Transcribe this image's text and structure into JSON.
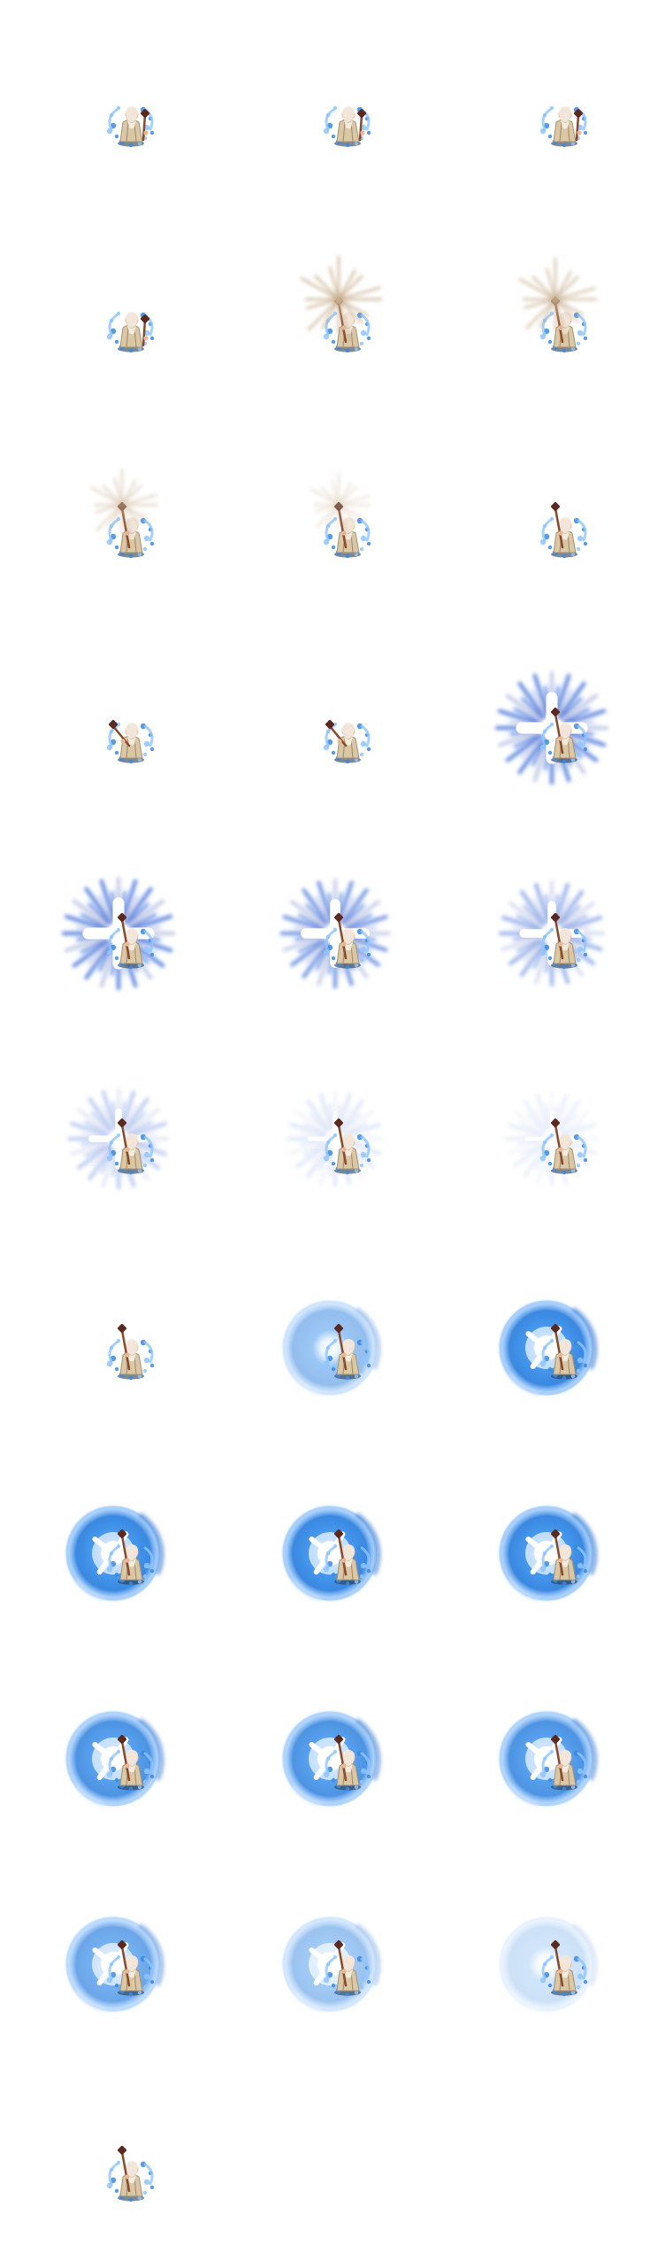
{
  "sprite_sheet": {
    "columns": 3,
    "rows": 11,
    "frame_count": 31,
    "palette": {
      "robe": "#d9c7a6",
      "robe_shadow": "#a89170",
      "skin": "#e8b89a",
      "hair": "#f2ebe0",
      "staff": "#8a4a2a",
      "staff_head": "#5a2a20",
      "aura": "#8fc4ff",
      "aura_dark": "#3a88e0",
      "orb_core": "#ffffff",
      "ray_tan": "#c9b090",
      "burst_blue": "#6a8fe0",
      "shadow": "#2a3a4a"
    },
    "frames": [
      {
        "staff": "low",
        "effect": "none"
      },
      {
        "staff": "low",
        "effect": "none"
      },
      {
        "staff": "low",
        "effect": "none"
      },
      {
        "staff": "low",
        "effect": "none"
      },
      {
        "staff": "raised",
        "effect": "rays",
        "level": 1.0
      },
      {
        "staff": "raised",
        "effect": "rays",
        "level": 0.9
      },
      {
        "staff": "raised",
        "effect": "rays",
        "level": 0.6
      },
      {
        "staff": "raised",
        "effect": "rays",
        "level": 0.4
      },
      {
        "staff": "raised",
        "effect": "none"
      },
      {
        "staff": "side",
        "effect": "none"
      },
      {
        "staff": "side",
        "effect": "none"
      },
      {
        "staff": "raised",
        "effect": "burst",
        "level": 1.0
      },
      {
        "staff": "raised",
        "effect": "burst",
        "level": 1.0
      },
      {
        "staff": "raised",
        "effect": "burst",
        "level": 0.85
      },
      {
        "staff": "raised",
        "effect": "burst",
        "level": 0.65
      },
      {
        "staff": "raised",
        "effect": "burst",
        "level": 0.45
      },
      {
        "staff": "raised",
        "effect": "burst",
        "level": 0.2
      },
      {
        "staff": "raised",
        "effect": "burst",
        "level": 0.12
      },
      {
        "staff": "raised",
        "effect": "none"
      },
      {
        "staff": "raised",
        "effect": "orb",
        "level": 0.55,
        "core": false
      },
      {
        "staff": "raised",
        "effect": "orb",
        "level": 1.0,
        "core": true
      },
      {
        "staff": "raised",
        "effect": "orb",
        "level": 1.0,
        "core": true
      },
      {
        "staff": "raised",
        "effect": "orb",
        "level": 1.0,
        "core": true
      },
      {
        "staff": "raised",
        "effect": "orb",
        "level": 1.0,
        "core": true
      },
      {
        "staff": "raised",
        "effect": "orb",
        "level": 0.9,
        "core": true
      },
      {
        "staff": "raised",
        "effect": "orb",
        "level": 0.9,
        "core": true
      },
      {
        "staff": "raised",
        "effect": "orb",
        "level": 0.9,
        "core": true
      },
      {
        "staff": "raised",
        "effect": "orb",
        "level": 0.75,
        "core": true
      },
      {
        "staff": "raised",
        "effect": "orb",
        "level": 0.5,
        "core": true
      },
      {
        "staff": "raised",
        "effect": "orb",
        "level": 0.25,
        "core": false
      },
      {
        "staff": "raised",
        "effect": "none"
      }
    ]
  }
}
